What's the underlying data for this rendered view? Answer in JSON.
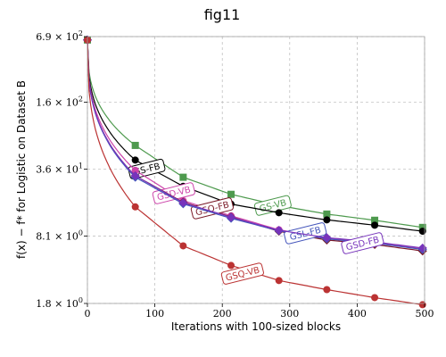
{
  "chart_data": {
    "type": "line",
    "title": "fig11",
    "xlabel": "Iterations with 100-sized blocks",
    "ylabel": "f(x) − f* for Logistic on Dataset B",
    "xlim": [
      0,
      500
    ],
    "ylim": [
      1.8,
      690
    ],
    "yscale": "log",
    "grid": true,
    "xticks": [
      0,
      100,
      200,
      300,
      400,
      500
    ],
    "xtick_labels": [
      "0",
      "100",
      "200",
      "300",
      "400",
      "500"
    ],
    "yticks": [
      1.8,
      8.1,
      36,
      160,
      690
    ],
    "ytick_labels": [
      {
        "mant": "1.8",
        "exp": "0"
      },
      {
        "mant": "8.1",
        "exp": "0"
      },
      {
        "mant": "3.6",
        "exp": "1"
      },
      {
        "mant": "1.6",
        "exp": "2"
      },
      {
        "mant": "6.9",
        "exp": "2"
      }
    ],
    "series": [
      {
        "name": "GS-VB",
        "color": "#4e9a4e",
        "marker": "square",
        "x": [
          0,
          71,
          142,
          213,
          284,
          355,
          426,
          497
        ],
        "y": [
          640,
          61,
          30,
          20.5,
          16,
          13.2,
          11.5,
          9.8
        ],
        "label_at": [
          275,
          16
        ]
      },
      {
        "name": "GS-FB",
        "color": "#000000",
        "marker": "circle",
        "x": [
          0,
          71,
          142,
          213,
          284,
          355,
          426,
          497
        ],
        "y": [
          640,
          44,
          24.5,
          16.5,
          13.6,
          11.6,
          10.3,
          9.0
        ],
        "label_at": [
          88,
          36
        ]
      },
      {
        "name": "GSD-VB",
        "color": "#cc44aa",
        "marker": "circle",
        "x": [
          0,
          71,
          142,
          213,
          284,
          355,
          426,
          497
        ],
        "y": [
          640,
          35,
          17.8,
          12.7,
          9.3,
          7.7,
          7.0,
          6.1
        ],
        "label_at": [
          128,
          21
        ]
      },
      {
        "name": "GSQ-FB",
        "color": "#7a1a28",
        "marker": "diamond",
        "x": [
          0,
          71,
          142,
          213,
          284,
          355,
          426,
          497
        ],
        "y": [
          640,
          31,
          17.2,
          12.4,
          9.0,
          7.4,
          6.7,
          5.8
        ],
        "label_at": [
          185,
          15
        ]
      },
      {
        "name": "GSL-FB",
        "color": "#4455bb",
        "marker": "diamond",
        "x": [
          0,
          71,
          142,
          213,
          284,
          355,
          426,
          497
        ],
        "y": [
          640,
          30,
          16.6,
          12.0,
          9.1,
          7.6,
          6.9,
          6.0
        ],
        "label_at": [
          323,
          8.6
        ]
      },
      {
        "name": "GSD-FB",
        "color": "#7733bb",
        "marker": "diamond",
        "x": [
          0,
          71,
          142,
          213,
          284,
          355,
          426,
          497
        ],
        "y": [
          640,
          31,
          17.0,
          12.3,
          9.2,
          7.8,
          7.1,
          6.2
        ],
        "label_at": [
          408,
          6.9
        ]
      },
      {
        "name": "GSQ-VB",
        "color": "#bb3333",
        "marker": "circle",
        "x": [
          0,
          71,
          142,
          213,
          284,
          355,
          426,
          497
        ],
        "y": [
          640,
          15.5,
          6.5,
          4.2,
          3.0,
          2.45,
          2.05,
          1.75
        ],
        "label_at": [
          230,
          3.5
        ]
      }
    ]
  }
}
